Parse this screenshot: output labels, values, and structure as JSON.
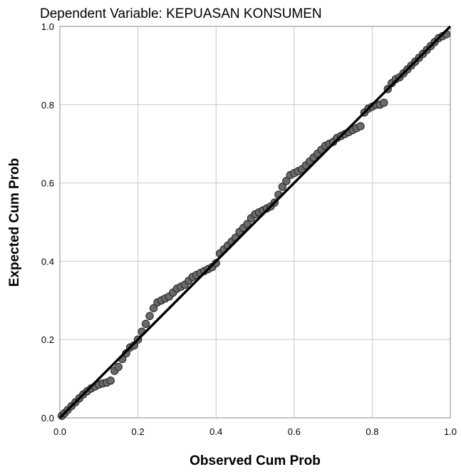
{
  "chart_data": {
    "type": "scatter",
    "title": "Dependent Variable: KEPUASAN KONSUMEN",
    "xlabel": "Observed Cum Prob",
    "ylabel": "Expected Cum Prob",
    "xlim": [
      0,
      1
    ],
    "ylim": [
      0,
      1
    ],
    "x_ticks": [
      "0.0",
      "0.2",
      "0.4",
      "0.6",
      "0.8",
      "1.0"
    ],
    "y_ticks": [
      "0.0",
      "0.2",
      "0.4",
      "0.6",
      "0.8",
      "1.0"
    ],
    "grid": true,
    "reference_line": [
      [
        0,
        0
      ],
      [
        1,
        1
      ]
    ],
    "point_color": "#6a6a6a",
    "points": [
      [
        0.005,
        0.005
      ],
      [
        0.012,
        0.012
      ],
      [
        0.02,
        0.02
      ],
      [
        0.03,
        0.03
      ],
      [
        0.04,
        0.04
      ],
      [
        0.05,
        0.05
      ],
      [
        0.06,
        0.06
      ],
      [
        0.07,
        0.068
      ],
      [
        0.08,
        0.075
      ],
      [
        0.09,
        0.08
      ],
      [
        0.1,
        0.085
      ],
      [
        0.11,
        0.088
      ],
      [
        0.12,
        0.09
      ],
      [
        0.13,
        0.095
      ],
      [
        0.14,
        0.12
      ],
      [
        0.15,
        0.13
      ],
      [
        0.16,
        0.15
      ],
      [
        0.17,
        0.165
      ],
      [
        0.18,
        0.18
      ],
      [
        0.19,
        0.185
      ],
      [
        0.2,
        0.2
      ],
      [
        0.21,
        0.22
      ],
      [
        0.22,
        0.24
      ],
      [
        0.23,
        0.26
      ],
      [
        0.24,
        0.28
      ],
      [
        0.25,
        0.295
      ],
      [
        0.26,
        0.3
      ],
      [
        0.27,
        0.305
      ],
      [
        0.28,
        0.31
      ],
      [
        0.29,
        0.32
      ],
      [
        0.3,
        0.33
      ],
      [
        0.31,
        0.335
      ],
      [
        0.32,
        0.34
      ],
      [
        0.33,
        0.35
      ],
      [
        0.34,
        0.36
      ],
      [
        0.35,
        0.365
      ],
      [
        0.36,
        0.37
      ],
      [
        0.37,
        0.375
      ],
      [
        0.38,
        0.38
      ],
      [
        0.39,
        0.385
      ],
      [
        0.4,
        0.395
      ],
      [
        0.41,
        0.42
      ],
      [
        0.42,
        0.43
      ],
      [
        0.43,
        0.44
      ],
      [
        0.44,
        0.45
      ],
      [
        0.45,
        0.46
      ],
      [
        0.46,
        0.475
      ],
      [
        0.47,
        0.485
      ],
      [
        0.48,
        0.495
      ],
      [
        0.49,
        0.51
      ],
      [
        0.5,
        0.52
      ],
      [
        0.51,
        0.525
      ],
      [
        0.52,
        0.53
      ],
      [
        0.53,
        0.535
      ],
      [
        0.54,
        0.54
      ],
      [
        0.55,
        0.55
      ],
      [
        0.56,
        0.57
      ],
      [
        0.57,
        0.59
      ],
      [
        0.58,
        0.605
      ],
      [
        0.59,
        0.62
      ],
      [
        0.6,
        0.625
      ],
      [
        0.61,
        0.63
      ],
      [
        0.62,
        0.635
      ],
      [
        0.63,
        0.645
      ],
      [
        0.64,
        0.655
      ],
      [
        0.65,
        0.665
      ],
      [
        0.66,
        0.675
      ],
      [
        0.67,
        0.685
      ],
      [
        0.68,
        0.695
      ],
      [
        0.69,
        0.7
      ],
      [
        0.7,
        0.705
      ],
      [
        0.71,
        0.715
      ],
      [
        0.72,
        0.72
      ],
      [
        0.73,
        0.725
      ],
      [
        0.74,
        0.73
      ],
      [
        0.75,
        0.735
      ],
      [
        0.76,
        0.74
      ],
      [
        0.77,
        0.745
      ],
      [
        0.78,
        0.78
      ],
      [
        0.79,
        0.79
      ],
      [
        0.8,
        0.795
      ],
      [
        0.81,
        0.8
      ],
      [
        0.82,
        0.8
      ],
      [
        0.83,
        0.805
      ],
      [
        0.84,
        0.84
      ],
      [
        0.85,
        0.855
      ],
      [
        0.86,
        0.865
      ],
      [
        0.87,
        0.87
      ],
      [
        0.88,
        0.88
      ],
      [
        0.89,
        0.89
      ],
      [
        0.9,
        0.9
      ],
      [
        0.91,
        0.91
      ],
      [
        0.92,
        0.92
      ],
      [
        0.93,
        0.93
      ],
      [
        0.94,
        0.94
      ],
      [
        0.95,
        0.95
      ],
      [
        0.96,
        0.96
      ],
      [
        0.97,
        0.97
      ],
      [
        0.98,
        0.975
      ],
      [
        0.99,
        0.98
      ]
    ]
  }
}
